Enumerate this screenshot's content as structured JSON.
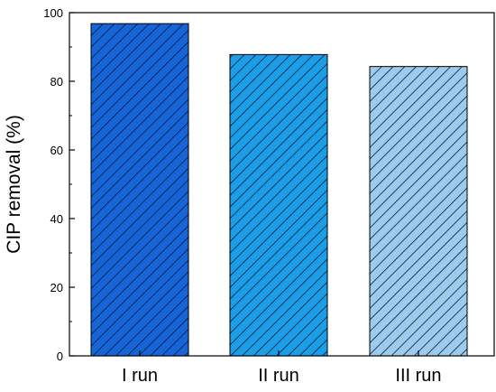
{
  "chart_data": {
    "type": "bar",
    "title": "",
    "xlabel": "",
    "ylabel": "CIP removal (%)",
    "categories": [
      "I run",
      "II run",
      "III run"
    ],
    "values": [
      96.8,
      87.8,
      84.3
    ],
    "ylim": [
      0,
      100
    ],
    "yticks": [
      0,
      20,
      40,
      60,
      80,
      100
    ],
    "grid": false,
    "legend": "none",
    "pattern": "diagonal-hatch",
    "colors": [
      "#1565d8",
      "#1a9ee8",
      "#9ccbee"
    ]
  }
}
